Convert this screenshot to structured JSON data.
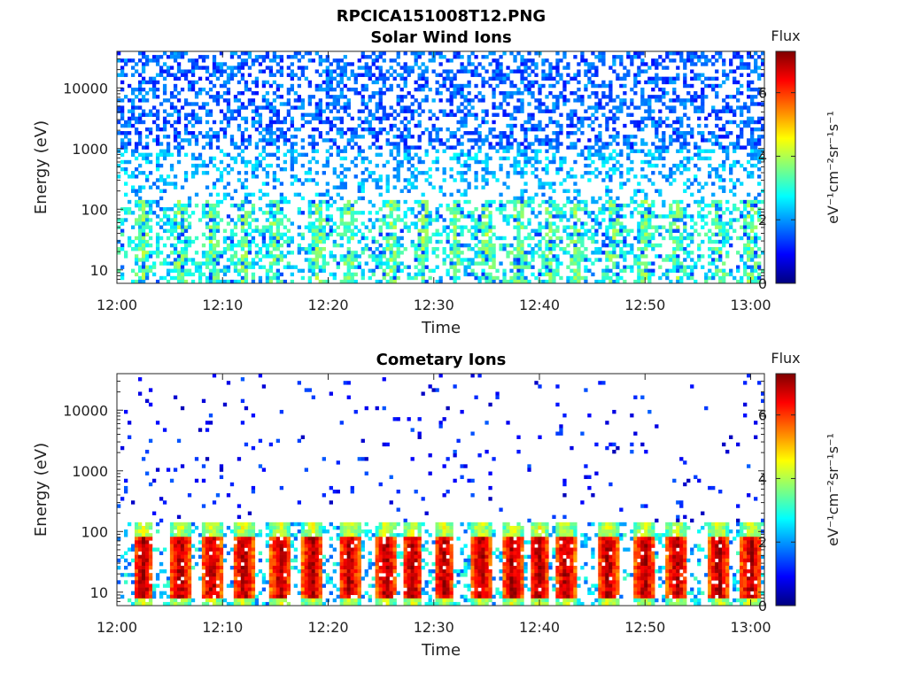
{
  "figure": {
    "main_title": "RPCICA151008T12.PNG"
  },
  "colormap": {
    "stops": [
      "#00007f",
      "#0000ff",
      "#007fff",
      "#00ffff",
      "#7fff7f",
      "#ffff00",
      "#ff7f00",
      "#ff0000",
      "#7f0000"
    ]
  },
  "chart_data": [
    {
      "type": "heatmap",
      "title": "Solar Wind Ions",
      "xlabel": "Time",
      "ylabel": "Energy (eV)",
      "x_ticks": [
        "12:00",
        "12:10",
        "12:20",
        "12:30",
        "12:40",
        "12:50",
        "13:00"
      ],
      "x_tick_minutes": [
        0,
        10,
        20,
        30,
        40,
        50,
        60
      ],
      "x_range_minutes": [
        0,
        61.3
      ],
      "y_scale": "log",
      "y_ticks": [
        "10",
        "100",
        "1000",
        "10000"
      ],
      "y_tick_values": [
        10,
        100,
        1000,
        10000
      ],
      "ylim": [
        6,
        40000
      ],
      "colorbar": {
        "label_top": "Flux",
        "unit": "eV⁻¹cm⁻²sr⁻¹s⁻¹",
        "ticks": [
          "0",
          "2",
          "4",
          "6"
        ],
        "tick_values": [
          0,
          2,
          4,
          6
        ],
        "range": [
          0,
          7.3
        ]
      },
      "pattern": {
        "description": "sparse scattered low flux (1-3) above ~150 eV; dense patchy moderate flux (3-4) near 10-150 eV with periodic bursts",
        "burst_minutes": [
          2.5,
          6,
          9,
          12,
          15,
          19,
          22,
          26,
          29,
          32,
          35,
          38,
          41,
          43.5,
          47,
          50,
          53,
          57,
          60
        ],
        "high_energy_flux": 1.6,
        "low_energy_flux": 3.6
      }
    },
    {
      "type": "heatmap",
      "title": "Cometary Ions",
      "xlabel": "Time",
      "ylabel": "Energy (eV)",
      "x_ticks": [
        "12:00",
        "12:10",
        "12:20",
        "12:30",
        "12:40",
        "12:50",
        "13:00"
      ],
      "x_tick_minutes": [
        0,
        10,
        20,
        30,
        40,
        50,
        60
      ],
      "x_range_minutes": [
        0,
        61.3
      ],
      "y_scale": "log",
      "y_ticks": [
        "10",
        "100",
        "1000",
        "10000"
      ],
      "y_tick_values": [
        10,
        100,
        1000,
        10000
      ],
      "ylim": [
        6,
        40000
      ],
      "colorbar": {
        "label_top": "Flux",
        "unit": "eV⁻¹cm⁻²sr⁻¹s⁻¹",
        "ticks": [
          "0",
          "2",
          "4",
          "6"
        ],
        "tick_values": [
          0,
          2,
          4,
          6
        ],
        "range": [
          0,
          7.3
        ]
      },
      "pattern": {
        "description": "very sparse low flux dots above ~200 eV; strong periodic bursts of 5-7 flux between ~8 and ~150 eV",
        "burst_minutes": [
          2.5,
          6,
          9,
          12,
          15.5,
          18.5,
          22,
          25.5,
          28,
          31,
          34.5,
          37.5,
          40,
          42.5,
          46.5,
          50,
          53,
          57,
          60
        ],
        "high_energy_flux": 1.0,
        "low_energy_flux": 5.5
      }
    }
  ]
}
